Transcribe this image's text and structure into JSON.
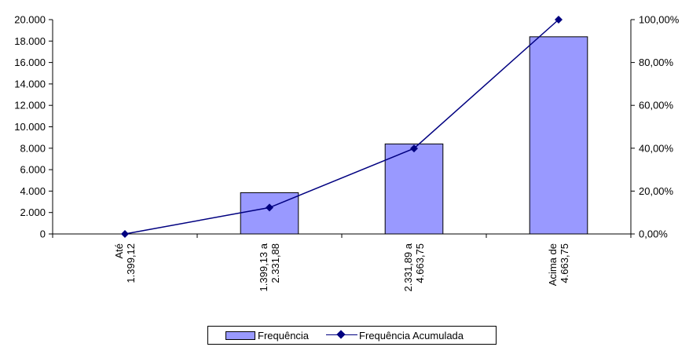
{
  "chart_data": {
    "type": "bar",
    "categories": [
      [
        "Até",
        "1.399,12"
      ],
      [
        "1.399,13 a",
        "2.331,88"
      ],
      [
        "2.331,89 a",
        "4.663,75"
      ],
      [
        "Acima de",
        "4.663,75"
      ]
    ],
    "series": [
      {
        "name": "Frequência",
        "type": "bar",
        "axis": "left",
        "color": "#9999ff",
        "values": [
          0,
          3850,
          8400,
          18400
        ]
      },
      {
        "name": "Frequência Acumulada",
        "type": "line",
        "axis": "right",
        "color": "#000080",
        "marker": "diamond",
        "values": [
          0.0,
          12.3,
          39.9,
          100.0
        ]
      }
    ],
    "y_left": {
      "ylim": [
        0,
        20000
      ],
      "ticks": [
        "0",
        "2.000",
        "4.000",
        "6.000",
        "8.000",
        "10.000",
        "12.000",
        "14.000",
        "16.000",
        "18.000",
        "20.000"
      ]
    },
    "y_right": {
      "ylim": [
        0,
        100
      ],
      "ticks": [
        "0,00%",
        "20,00%",
        "40,00%",
        "60,00%",
        "80,00%",
        "100,00%"
      ]
    },
    "grid": false,
    "legend_position": "bottom"
  }
}
